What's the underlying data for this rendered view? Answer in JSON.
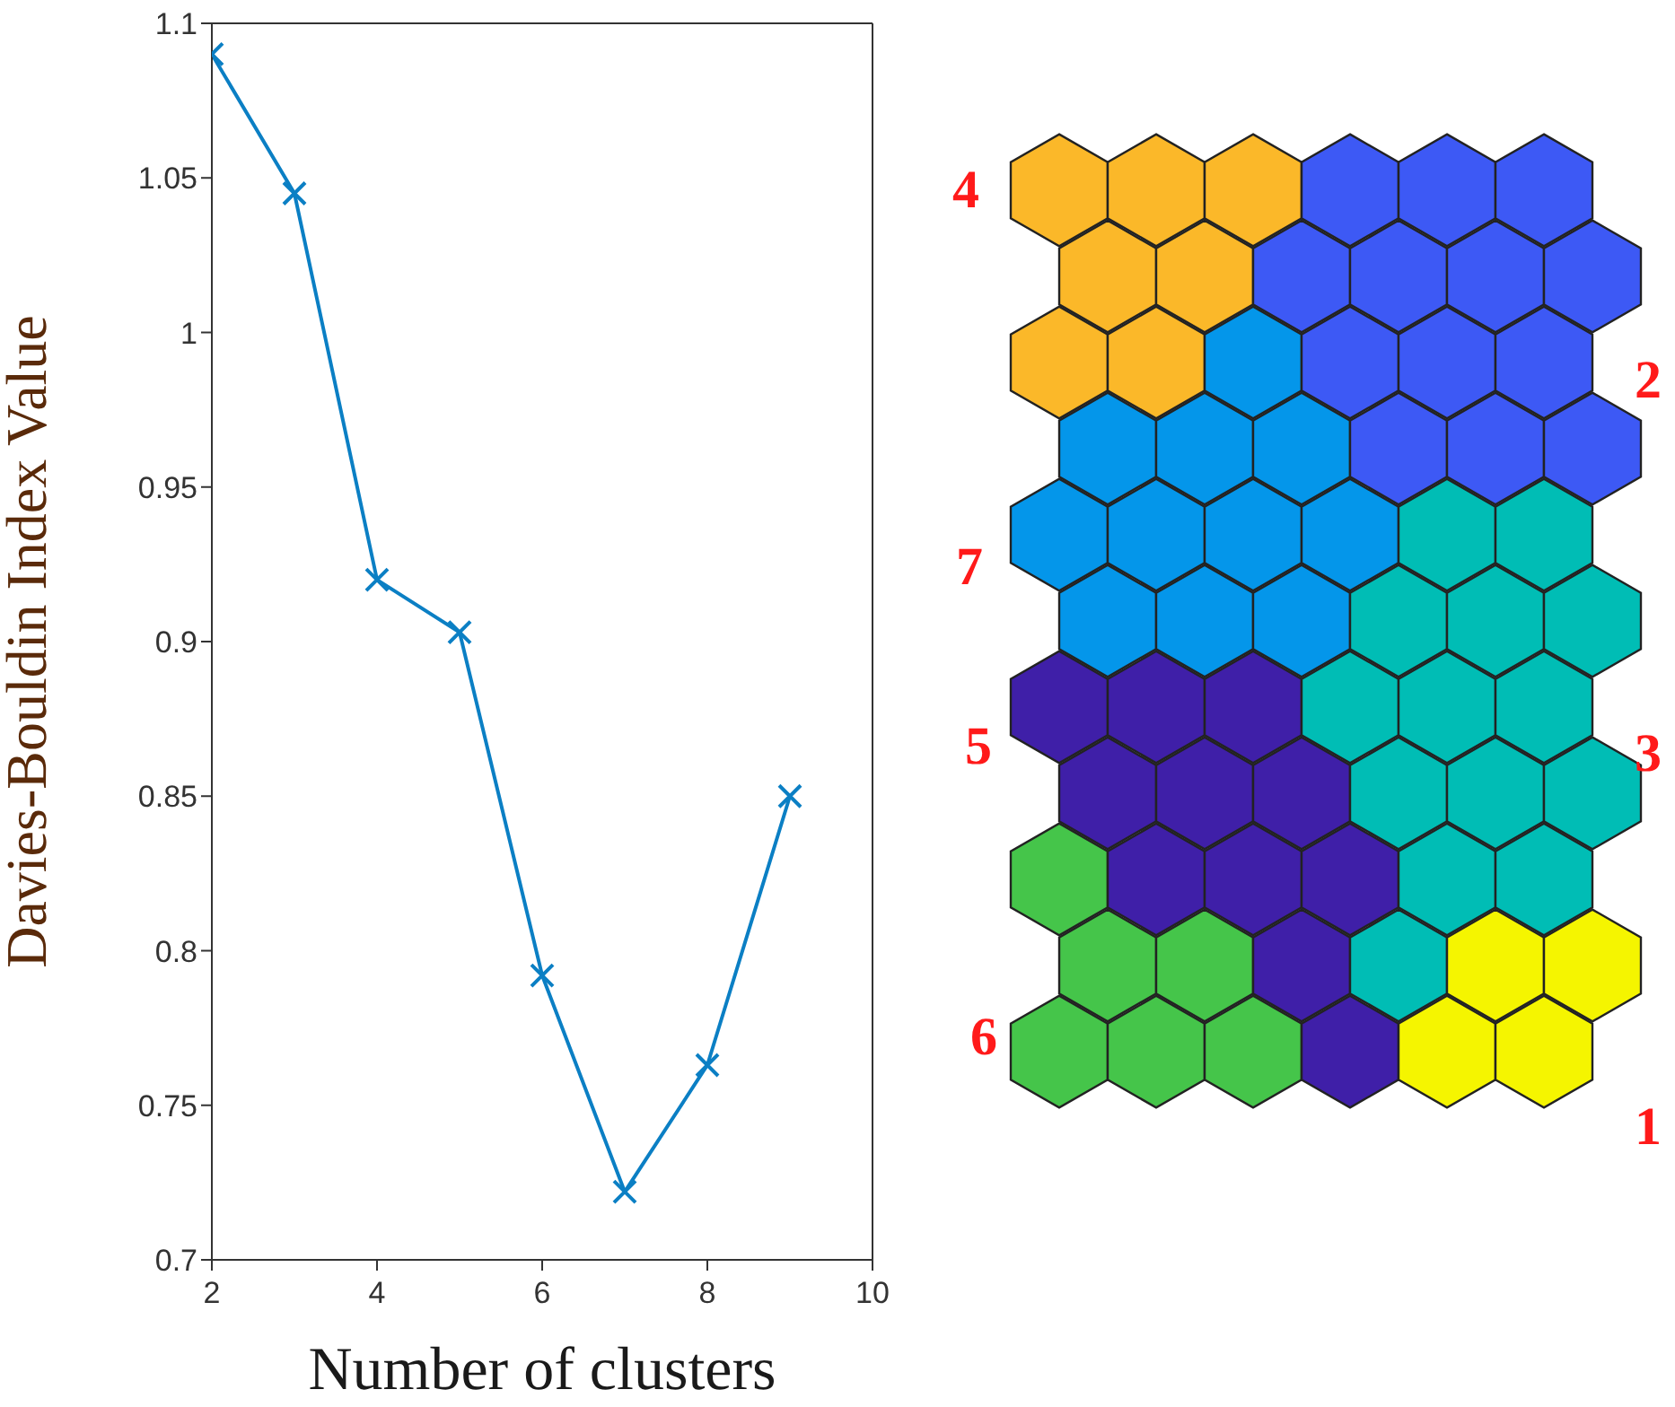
{
  "chart_data": [
    {
      "type": "line",
      "xlabel": "Number of clusters",
      "ylabel": "Davies-Bouldin Index Value",
      "x": [
        2,
        3,
        4,
        5,
        6,
        7,
        8,
        9
      ],
      "series": [
        {
          "color": "#0b7fc4",
          "values": [
            1.09,
            1.045,
            0.92,
            0.903,
            0.792,
            0.722,
            0.763,
            0.85
          ]
        }
      ],
      "xlim": [
        2,
        10
      ],
      "xticks": [
        2,
        4,
        6,
        8,
        10
      ],
      "ylim": [
        0.7,
        1.1
      ],
      "yticks": [
        0.7,
        0.75,
        0.8,
        0.85,
        0.9,
        0.95,
        1,
        1.05,
        1.1
      ],
      "grid": false,
      "marker": "cross",
      "line_style": "solid"
    },
    {
      "type": "other",
      "annotations": [
        "4",
        "2",
        "7",
        "3",
        "5",
        "6",
        "1"
      ]
    }
  ]
}
